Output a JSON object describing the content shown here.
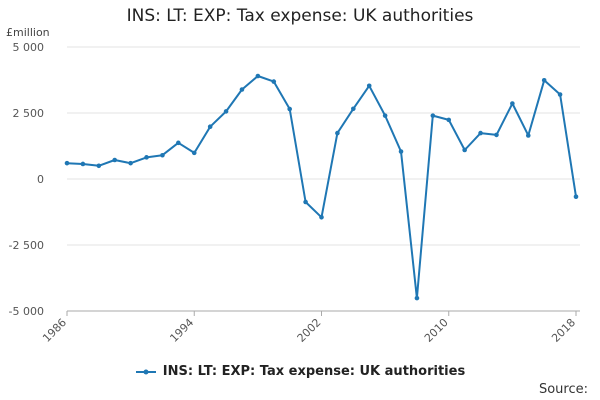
{
  "chart_data": {
    "type": "line",
    "title": "INS: LT: EXP: Tax expense: UK authorities",
    "unit_label": "£million",
    "ylim": [
      -5000,
      5000
    ],
    "yticks": [
      5000,
      2500,
      0,
      -2500,
      -5000
    ],
    "ytick_labels": [
      "5 000",
      "2 500",
      "0",
      "-2 500",
      "-5 000"
    ],
    "xlim": [
      1986,
      2018
    ],
    "xticks": [
      1986,
      1994,
      2002,
      2010,
      2018
    ],
    "xtick_labels": [
      "1986",
      "1994",
      "2002",
      "2010",
      "2018"
    ],
    "grid": "horizontal",
    "legend_position": "bottom",
    "series": [
      {
        "name": "INS: LT: EXP: Tax expense: UK authorities",
        "color": "#1f77b4",
        "x": [
          1986,
          1987,
          1988,
          1989,
          1990,
          1991,
          1992,
          1993,
          1994,
          1995,
          1996,
          1997,
          1998,
          1999,
          2000,
          2001,
          2002,
          2003,
          2004,
          2005,
          2006,
          2007,
          2008,
          2009,
          2010,
          2011,
          2012,
          2013,
          2014,
          2015,
          2016,
          2017,
          2018
        ],
        "y": [
          600,
          570,
          500,
          720,
          600,
          820,
          900,
          1370,
          990,
          1980,
          2560,
          3390,
          3900,
          3690,
          2650,
          -870,
          -1450,
          1740,
          2660,
          3530,
          2400,
          1040,
          -4510,
          2400,
          2240,
          1100,
          1740,
          1670,
          2860,
          1650,
          3740,
          3200,
          -670
        ]
      }
    ]
  },
  "source_label": "Source:"
}
